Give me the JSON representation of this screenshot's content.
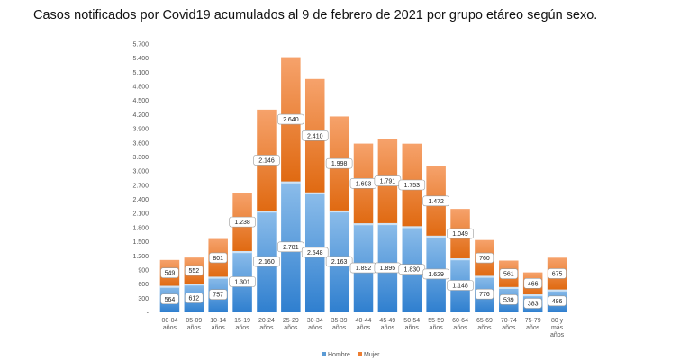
{
  "title": "Casos notificados por Covid19 acumulados al 9 de febrero de 2021 por grupo etáreo según sexo.",
  "chart_data": {
    "type": "bar",
    "stacked": true,
    "title": "Casos notificados por Covid19 acumulados al 9 de febrero de 2021 por grupo etáreo según sexo.",
    "xlabel": "",
    "ylabel": "",
    "ylim": [
      0,
      5700
    ],
    "yticks": [
      0,
      300,
      600,
      900,
      1200,
      1500,
      1800,
      2100,
      2400,
      2700,
      3000,
      3300,
      3600,
      3900,
      4200,
      4500,
      4800,
      5100,
      5400,
      5700
    ],
    "ytick_labels": [
      "-",
      "300",
      "600",
      "900",
      "1.200",
      "1.500",
      "1.800",
      "2.100",
      "2.400",
      "2.700",
      "3.000",
      "3.300",
      "3.600",
      "3.900",
      "4.200",
      "4.500",
      "4.800",
      "5.100",
      "5.400",
      "5.700"
    ],
    "categories": [
      [
        "00-04",
        "años"
      ],
      [
        "05-09",
        "años"
      ],
      [
        "10-14",
        "años"
      ],
      [
        "15-19",
        "años"
      ],
      [
        "20-24",
        "años"
      ],
      [
        "25-29",
        "años"
      ],
      [
        "30-34",
        "años"
      ],
      [
        "35-39",
        "años"
      ],
      [
        "40-44",
        "años"
      ],
      [
        "45-49",
        "años"
      ],
      [
        "50-54",
        "años"
      ],
      [
        "55-59",
        "años"
      ],
      [
        "60-64",
        "años"
      ],
      [
        "65-69",
        "años"
      ],
      [
        "70-74",
        "años"
      ],
      [
        "75-79",
        "años"
      ],
      [
        "80 y",
        "más",
        "años"
      ]
    ],
    "series": [
      {
        "name": "Hombre",
        "color": "#5b9bd5",
        "values": [
          564,
          612,
          757,
          1301,
          2160,
          2781,
          2548,
          2163,
          1892,
          1895,
          1830,
          1629,
          1148,
          776,
          539,
          383,
          486
        ],
        "labels": [
          "564",
          "612",
          "757",
          "1.301",
          "2.160",
          "2.781",
          "2.548",
          "2.163",
          "1.892",
          "1.895",
          "1.830",
          "1.629",
          "1.148",
          "776",
          "539",
          "383",
          "486"
        ]
      },
      {
        "name": "Mujer",
        "color": "#ed7d31",
        "values": [
          549,
          552,
          801,
          1238,
          2146,
          2640,
          2410,
          1998,
          1693,
          1791,
          1753,
          1472,
          1049,
          760,
          561,
          466,
          675
        ],
        "labels": [
          "549",
          "552",
          "801",
          "1.238",
          "2.146",
          "2.640",
          "2.410",
          "1.998",
          "1.693",
          "1.791",
          "1.753",
          "1.472",
          "1.049",
          "760",
          "561",
          "466",
          "675"
        ]
      }
    ],
    "legend": "bottom",
    "grid": false
  }
}
